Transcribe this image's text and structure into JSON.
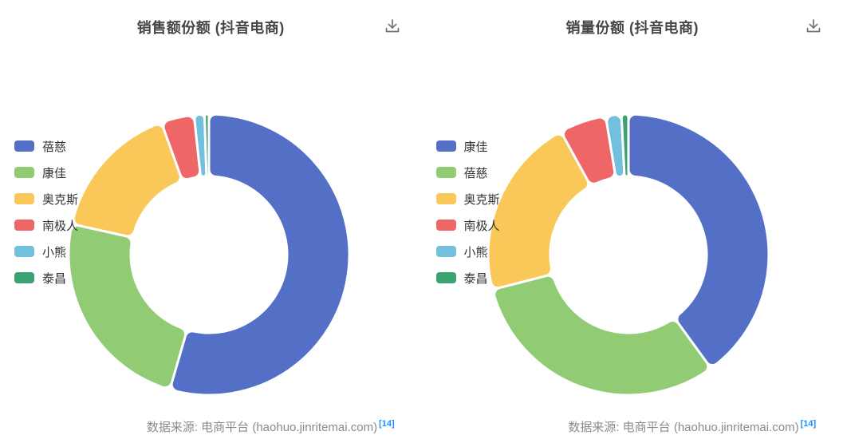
{
  "ui": {
    "download_tooltip": "download",
    "accent_blue": "#1890ff",
    "title_color": "#464646",
    "source_color": "#8b8b8b",
    "icon_color": "#737373"
  },
  "chart_data": [
    {
      "type": "pie",
      "subtype": "donut",
      "title": "销售额份额 (抖音电商)",
      "legend_position": "left",
      "values_are_estimated_percent": true,
      "series": [
        {
          "name": "蓓慈",
          "value": 54.5,
          "color": "#5470c6"
        },
        {
          "name": "康佳",
          "value": 24.0,
          "color": "#91cc75"
        },
        {
          "name": "奥克斯",
          "value": 16.0,
          "color": "#fac858"
        },
        {
          "name": "南极人",
          "value": 3.8,
          "color": "#ee6666"
        },
        {
          "name": "小熊",
          "value": 1.2,
          "color": "#73c0de"
        },
        {
          "name": "泰昌",
          "value": 0.5,
          "color": "#3ba272"
        }
      ],
      "source": {
        "text": "数据来源: 电商平台 (haohuo.jinritemai.com)",
        "ref": "[14]"
      }
    },
    {
      "type": "pie",
      "subtype": "donut",
      "title": "销量份额 (抖音电商)",
      "legend_position": "left",
      "values_are_estimated_percent": true,
      "series": [
        {
          "name": "康佳",
          "value": 40.0,
          "color": "#5470c6"
        },
        {
          "name": "蓓慈",
          "value": 31.0,
          "color": "#91cc75"
        },
        {
          "name": "奥克斯",
          "value": 21.0,
          "color": "#fac858"
        },
        {
          "name": "南极人",
          "value": 5.4,
          "color": "#ee6666"
        },
        {
          "name": "小熊",
          "value": 1.8,
          "color": "#73c0de"
        },
        {
          "name": "泰昌",
          "value": 0.8,
          "color": "#3ba272"
        }
      ],
      "source": {
        "text": "数据来源: 电商平台 (haohuo.jinritemai.com)",
        "ref": "[14]"
      }
    }
  ]
}
